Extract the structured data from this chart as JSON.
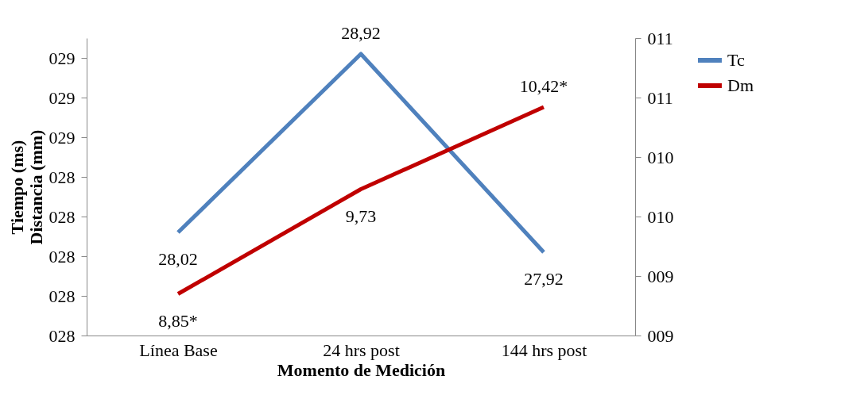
{
  "chart_data": {
    "type": "line",
    "xlabel": "Momento de Medición",
    "ylabel": "Tiempo (ms)\nDistancia (mm)",
    "categories": [
      "Línea Base",
      "24 hrs post",
      "144 hrs post"
    ],
    "series": [
      {
        "name": "Tc",
        "color": "#4f81bd",
        "values": [
          28.02,
          28.92,
          27.92
        ],
        "value_labels": [
          "28,02",
          "28,92",
          "27,92"
        ]
      },
      {
        "name": "Dm",
        "color": "#c00000",
        "axis": "y2",
        "values": [
          8.85,
          9.73,
          10.42
        ],
        "value_labels": [
          "8,85*",
          "9,73",
          "10,42*"
        ]
      }
    ],
    "ylim": [
      27.5,
      29.0
    ],
    "yticks": [
      {
        "value": 27.5,
        "label": "028"
      },
      {
        "value": 27.7,
        "label": "028"
      },
      {
        "value": 27.9,
        "label": "028"
      },
      {
        "value": 28.1,
        "label": "028"
      },
      {
        "value": 28.3,
        "label": "028"
      },
      {
        "value": 28.5,
        "label": "029"
      },
      {
        "value": 28.7,
        "label": "029"
      },
      {
        "value": 28.9,
        "label": "029"
      }
    ],
    "y2lim": [
      8.5,
      11.0
    ],
    "y2ticks": [
      {
        "value": 8.5,
        "label": "009"
      },
      {
        "value": 9.0,
        "label": "009"
      },
      {
        "value": 9.5,
        "label": "010"
      },
      {
        "value": 10.0,
        "label": "010"
      },
      {
        "value": 10.5,
        "label": "011"
      },
      {
        "value": 11.0,
        "label": "011"
      }
    ],
    "grid": false,
    "legend": "right",
    "marker": "none",
    "line_style": "solid"
  }
}
